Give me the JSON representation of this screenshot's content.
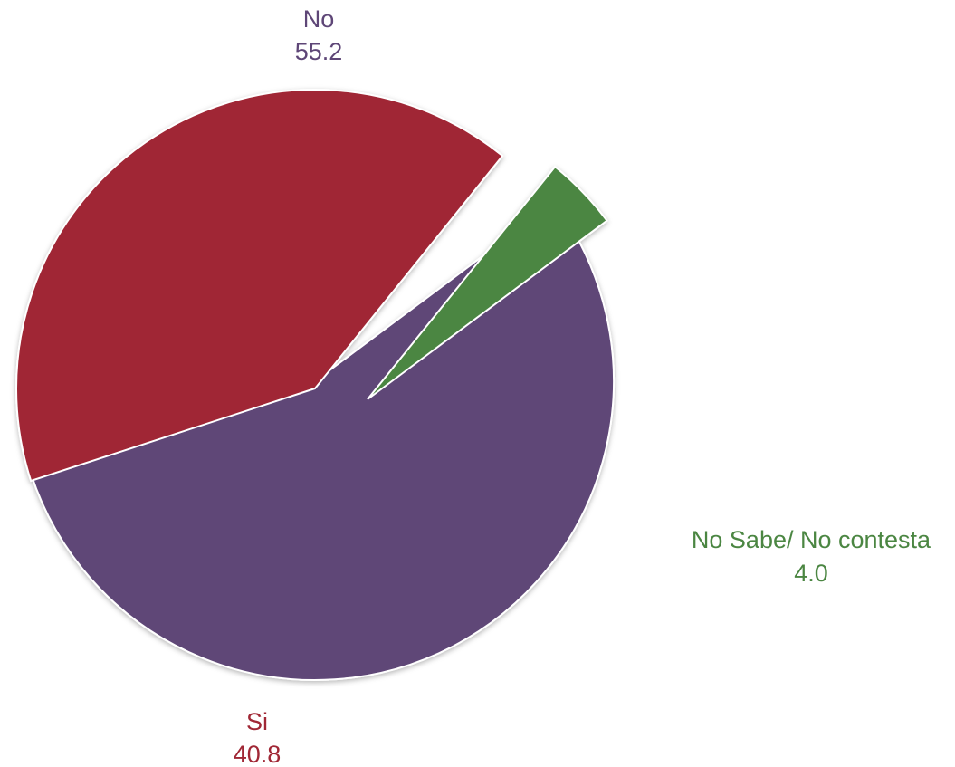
{
  "chart_data": {
    "type": "pie",
    "slices": [
      {
        "name": "No",
        "value": 55.2,
        "value_label": "55.2",
        "color": "#5e4677"
      },
      {
        "name": "Si",
        "value": 40.8,
        "value_label": "40.8",
        "color": "#a02735"
      },
      {
        "name": "No Sabe/ No contesta",
        "value": 4.0,
        "value_label": "4.0",
        "color": "#4b8642"
      }
    ],
    "exploded": [
      "No Sabe/ No contesta",
      "No"
    ]
  }
}
